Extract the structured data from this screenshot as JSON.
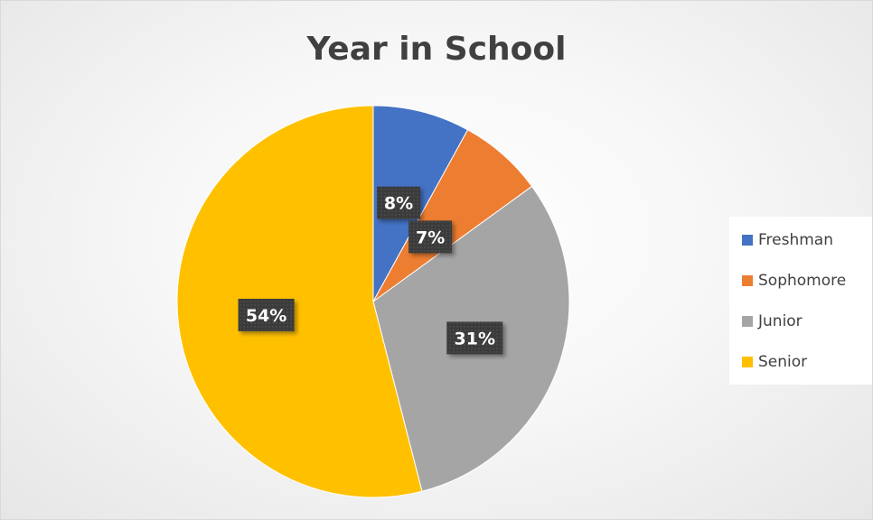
{
  "chart_data": {
    "type": "pie",
    "title": "Year in School",
    "categories": [
      "Freshman",
      "Sophomore",
      "Junior",
      "Senior"
    ],
    "values": [
      8,
      7,
      31,
      54
    ],
    "data_labels": [
      "8%",
      "7%",
      "31%",
      "54%"
    ],
    "colors": [
      "#4472c4",
      "#ed7d31",
      "#a5a5a5",
      "#ffc000"
    ],
    "legend_position": "right",
    "start_angle": "top",
    "direction": "clockwise"
  }
}
